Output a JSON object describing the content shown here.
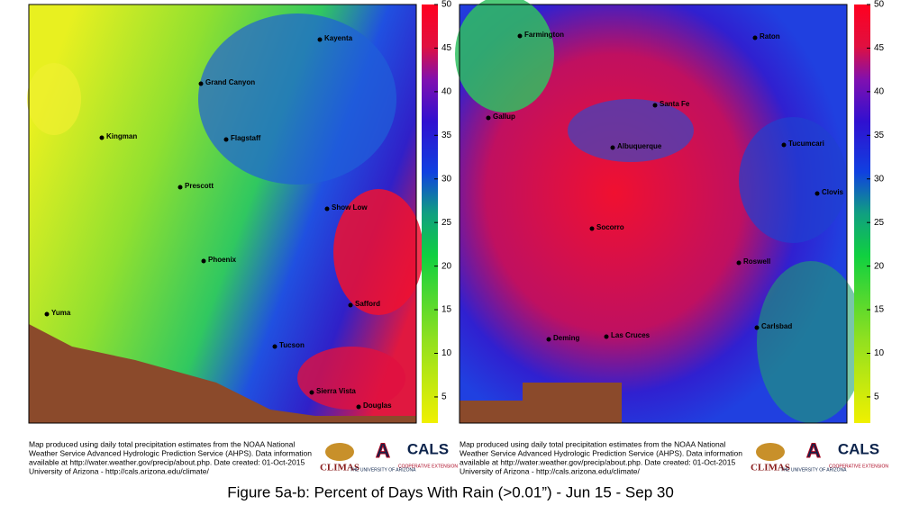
{
  "maps": [
    {
      "cities": [
        "Kayenta",
        "Grand Canyon",
        "Kingman",
        "Flagstaff",
        "Prescott",
        "Show Low",
        "Phoenix",
        "Safford",
        "Yuma",
        "Tucson",
        "Sierra Vista",
        "Douglas"
      ],
      "colorbar": {
        "range": [
          2,
          50
        ],
        "ticks": [
          5,
          10,
          15,
          20,
          25,
          30,
          35,
          40,
          45,
          50
        ]
      },
      "footer": [
        "Map produced using daily total precipitation estimates from the NOAA National",
        "Weather Service Advanced Hydrologic Prediction Service (AHPS). Data information",
        "available at http://water.weather.gov/precip/about.php. Date created: 01-Oct-2015",
        "University of Arizona - http://cals.arizona.edu/climate/"
      ],
      "logos": {
        "climas": "CLIMAS",
        "ua_mark": "A",
        "ua_name": "THE UNIVERSITY OF ARIZONA",
        "cals": "CALS",
        "cals_sub": "COOPERATIVE EXTENSION"
      }
    },
    {
      "cities": [
        "Farmington",
        "Raton",
        "Gallup",
        "Santa Fe",
        "Albuquerque",
        "Tucumcari",
        "Clovis",
        "Socorro",
        "Roswell",
        "Carlsbad",
        "Deming",
        "Las Cruces"
      ],
      "colorbar": {
        "range": [
          2,
          50
        ],
        "ticks": [
          5,
          10,
          15,
          20,
          25,
          30,
          35,
          40,
          45,
          50
        ]
      },
      "footer": [
        "Map produced using daily total precipitation estimates from the NOAA National",
        "Weather Service Advanced Hydrologic Prediction Service (AHPS). Data information",
        "available at http://water.weather.gov/precip/about.php. Date created: 01-Oct-2015",
        "University of Arizona - http://cals.arizona.edu/climate/"
      ],
      "logos": {
        "climas": "CLIMAS",
        "ua_mark": "A",
        "ua_name": "THE UNIVERSITY OF ARIZONA",
        "cals": "CALS",
        "cals_sub": "COOPERATIVE EXTENSION"
      }
    }
  ],
  "caption": "Figure 5a-b: Percent of Days With Rain (>0.01”) - Jun 15 - Sep 30"
}
